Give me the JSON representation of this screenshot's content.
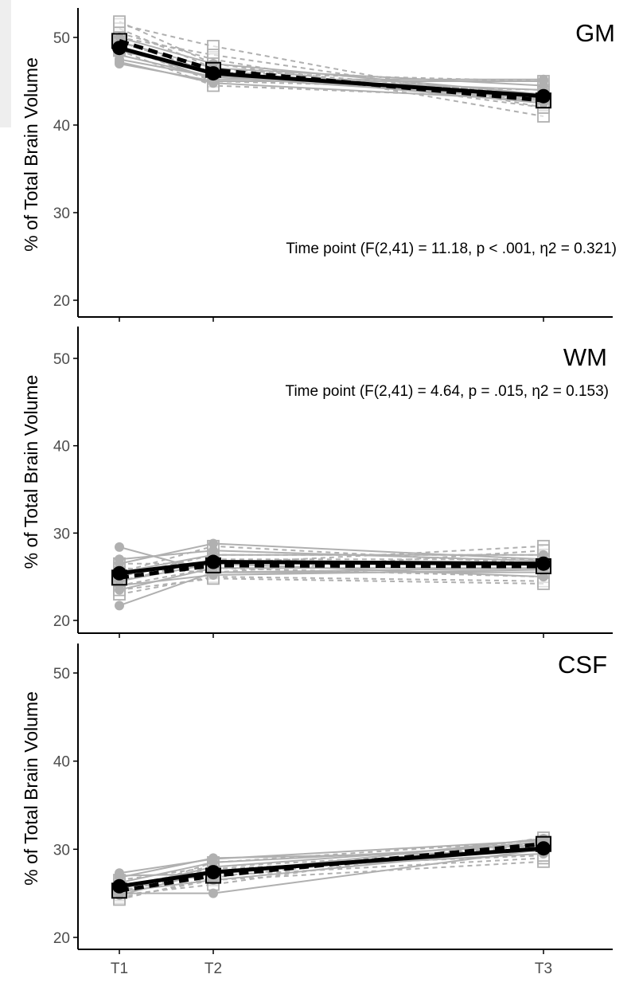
{
  "chart_data": {
    "type": "line",
    "x": [
      "T1",
      "T2",
      "T3"
    ],
    "x_positions": [
      1,
      2,
      5.5
    ],
    "ylabel": "% of Total Brain Volume",
    "ylim": [
      19,
      54
    ],
    "yticks": [
      20,
      30,
      40,
      50
    ],
    "colors": {
      "mean": "#000000",
      "individual": "#b0b0b0",
      "axis": "#000000",
      "tick_label": "#4d4d4d"
    },
    "panels": [
      {
        "title": "GM",
        "annotation": "Time point (F(2,41) = 11.18, p < .001, η2 = 0.321)",
        "mean_solid": [
          48.8,
          45.9,
          43.3
        ],
        "mean_dashed": [
          49.6,
          46.3,
          42.8
        ],
        "subjects_solid": [
          [
            47.0,
            45.0,
            45.0
          ],
          [
            48.0,
            45.5,
            44.0
          ],
          [
            49.5,
            46.5,
            44.5
          ],
          [
            47.5,
            45.5,
            43.0
          ],
          [
            50.0,
            47.0,
            43.5
          ],
          [
            48.5,
            46.0,
            42.5
          ],
          [
            47.2,
            44.8,
            42.8
          ],
          [
            49.0,
            45.2,
            45.2
          ]
        ],
        "subjects_dashed": [
          [
            51.5,
            49.0,
            42.0
          ],
          [
            50.5,
            47.5,
            41.0
          ],
          [
            49.0,
            45.0,
            44.0
          ],
          [
            51.0,
            46.5,
            43.5
          ],
          [
            48.5,
            44.5,
            43.0
          ],
          [
            50.0,
            48.0,
            42.5
          ],
          [
            49.5,
            46.0,
            45.0
          ],
          [
            51.8,
            47.0,
            42.0
          ]
        ]
      },
      {
        "title": "WM",
        "annotation": "Time point (F(2,41) = 4.64, p = .015, η2 = 0.153)",
        "mean_solid": [
          25.4,
          26.7,
          26.5
        ],
        "mean_dashed": [
          24.9,
          26.3,
          26.2
        ],
        "subjects_solid": [
          [
            28.4,
            25.5,
            25.5
          ],
          [
            21.7,
            25.5,
            26.0
          ],
          [
            26.5,
            28.8,
            27.0
          ],
          [
            24.5,
            26.5,
            25.0
          ],
          [
            25.5,
            27.5,
            27.5
          ],
          [
            23.5,
            26.0,
            26.0
          ],
          [
            27.0,
            28.0,
            26.8
          ],
          [
            24.0,
            25.2,
            25.8
          ]
        ],
        "subjects_dashed": [
          [
            26.5,
            26.5,
            28.5
          ],
          [
            23.0,
            25.0,
            24.5
          ],
          [
            25.0,
            27.5,
            27.5
          ],
          [
            24.0,
            26.0,
            25.0
          ],
          [
            26.0,
            25.5,
            28.0
          ],
          [
            23.5,
            24.8,
            24.2
          ],
          [
            25.5,
            28.5,
            26.5
          ],
          [
            24.5,
            27.0,
            27.0
          ]
        ]
      },
      {
        "title": "CSF",
        "annotation": "",
        "mean_solid": [
          25.8,
          27.4,
          30.1
        ],
        "mean_dashed": [
          25.3,
          27.0,
          30.6
        ],
        "subjects_solid": [
          [
            27.3,
            28.9,
            31.0
          ],
          [
            25.0,
            25.0,
            30.0
          ],
          [
            26.2,
            28.5,
            30.5
          ],
          [
            24.8,
            27.5,
            29.5
          ],
          [
            27.0,
            27.2,
            31.2
          ],
          [
            25.5,
            28.0,
            30.8
          ],
          [
            26.8,
            29.0,
            29.8
          ],
          [
            25.2,
            26.5,
            30.2
          ]
        ],
        "subjects_dashed": [
          [
            24.5,
            26.5,
            28.6
          ],
          [
            25.0,
            28.5,
            31.0
          ],
          [
            26.0,
            27.0,
            29.0
          ],
          [
            25.3,
            27.3,
            30.5
          ],
          [
            24.8,
            26.0,
            31.3
          ],
          [
            26.5,
            28.0,
            30.0
          ],
          [
            25.8,
            27.8,
            29.3
          ],
          [
            24.3,
            26.8,
            30.8
          ]
        ]
      }
    ]
  }
}
